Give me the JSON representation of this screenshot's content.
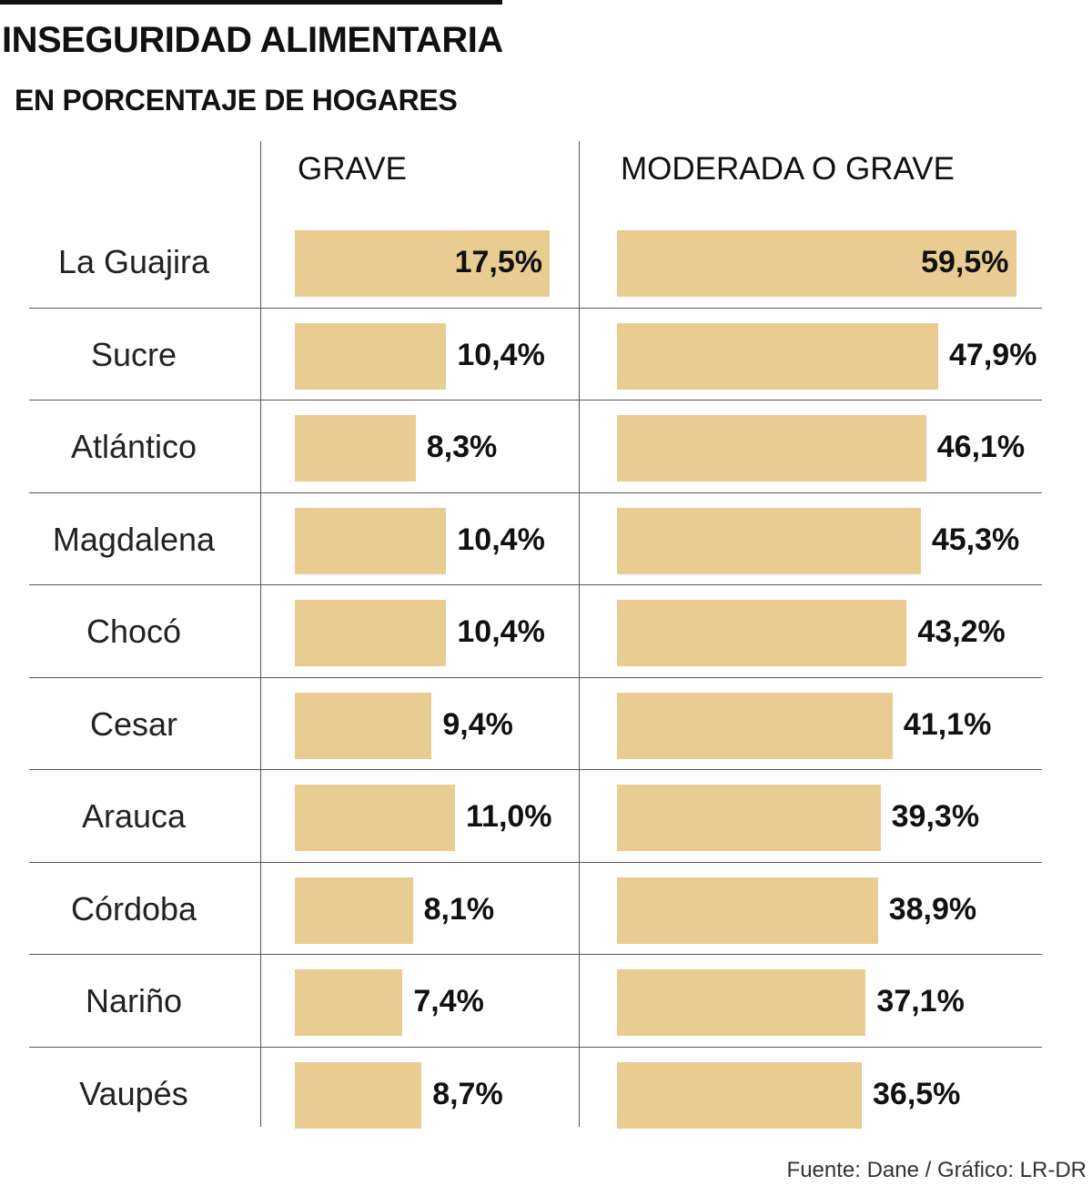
{
  "header": {
    "title": "INSEGURIDAD ALIMENTARIA",
    "subtitle": "EN PORCENTAJE DE HOGARES"
  },
  "columns": {
    "grave": "GRAVE",
    "moderada": "MODERADA O GRAVE"
  },
  "footer": {
    "source": "Fuente: Dane / Gráfico: LR-DR"
  },
  "colors": {
    "bar": "#e8cc92"
  },
  "chart_data": {
    "type": "bar",
    "orientation": "horizontal",
    "title": "INSEGURIDAD ALIMENTARIA",
    "subtitle": "EN PORCENTAJE DE HOGARES",
    "categories": [
      "La Guajira",
      "Sucre",
      "Atlántico",
      "Magdalena",
      "Chocó",
      "Cesar",
      "Arauca",
      "Córdoba",
      "Nariño",
      "Vaupés"
    ],
    "series": [
      {
        "name": "GRAVE",
        "values": [
          17.5,
          10.4,
          8.3,
          10.4,
          10.4,
          9.4,
          11.0,
          8.1,
          7.4,
          8.7
        ],
        "labels": [
          "17,5%",
          "10,4%",
          "8,3%",
          "10,4%",
          "10,4%",
          "9,4%",
          "11,0%",
          "8,1%",
          "7,4%",
          "8,7%"
        ]
      },
      {
        "name": "MODERADA O GRAVE",
        "values": [
          59.5,
          47.9,
          46.1,
          45.3,
          43.2,
          41.1,
          39.3,
          38.9,
          37.1,
          36.5
        ],
        "labels": [
          "59,5%",
          "47,9%",
          "46,1%",
          "45,3%",
          "43,2%",
          "41,1%",
          "39,3%",
          "38,9%",
          "37,1%",
          "36,5%"
        ]
      }
    ],
    "unit": "%",
    "grid": false,
    "legend": "none"
  }
}
